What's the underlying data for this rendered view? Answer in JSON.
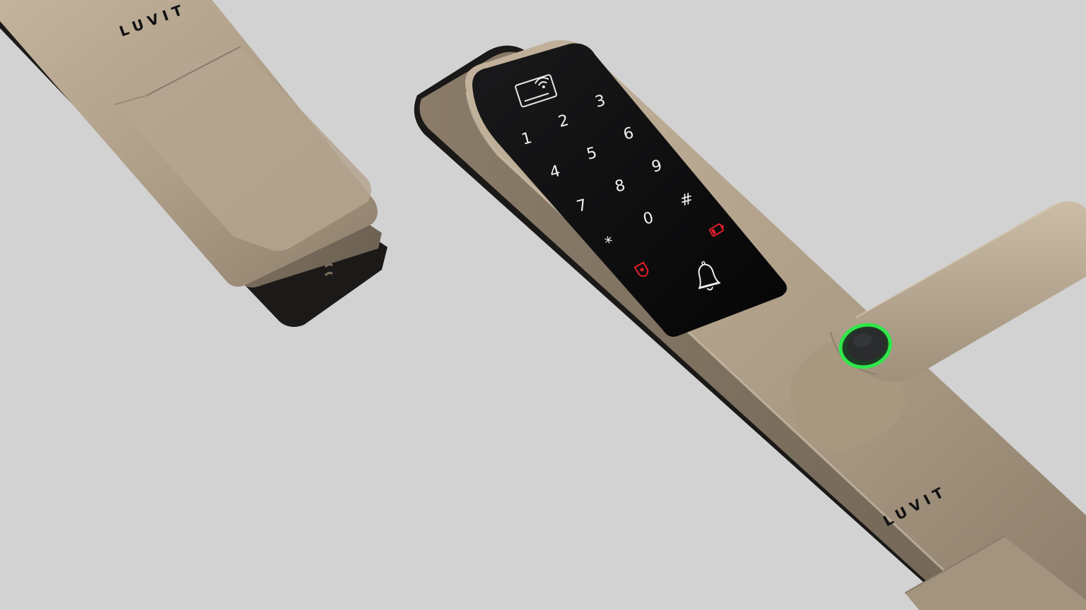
{
  "brand": {
    "top_logo": "LUVIT",
    "bottom_logo": "LUVIT"
  },
  "keypad": {
    "keys": [
      "1",
      "2",
      "3",
      "4",
      "5",
      "6",
      "7",
      "8",
      "9",
      "*",
      "0",
      "#"
    ]
  },
  "icons": {
    "card_reader": "card-reader-icon",
    "doorbell": "bell-icon",
    "low_battery": "battery-low-icon",
    "alarm": "shield-alarm-icon",
    "fingerprint": "fingerprint-sensor-icon"
  },
  "colors": {
    "background": "#d2d2d2",
    "body_gold": "#ad9d87",
    "panel_black": "#0b0b0c",
    "indicator_red": "#e3202a",
    "fingerprint_ring": "#2ee84a"
  }
}
